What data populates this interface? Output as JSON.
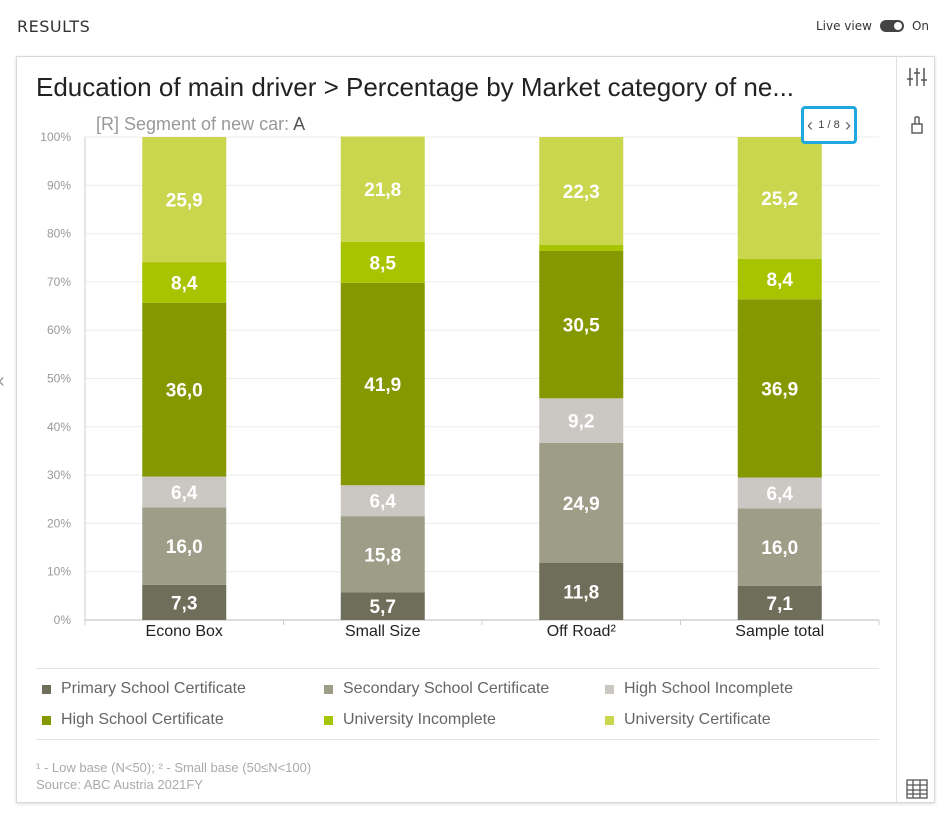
{
  "header": {
    "results_label": "RESULTS",
    "live_view_label": "Live view",
    "toggle_state": "On"
  },
  "pager": {
    "text": "1 / 8"
  },
  "subtitle": {
    "prefix": "[R] Segment of new car: ",
    "value": "A"
  },
  "footnotes": {
    "line1": "¹ - Low base (N<50);   ² - Small base (50≤N<100)",
    "line2": "Source: ABC Austria 2021FY"
  },
  "icons": [
    "sliders-icon",
    "brush-icon",
    "table-icon",
    "chevron-left-icon"
  ],
  "chart_data": {
    "type": "bar",
    "stacked": true,
    "title": "Education of main driver > Percentage by Market category of ne...",
    "categories": [
      "Econo Box",
      "Small Size",
      "Off Road²",
      "Sample total"
    ],
    "ylim": [
      0,
      100
    ],
    "yticks": [
      "0%",
      "10%",
      "20%",
      "30%",
      "40%",
      "50%",
      "60%",
      "70%",
      "80%",
      "90%",
      "100%"
    ],
    "grid": true,
    "legend_position": "bottom",
    "series": [
      {
        "name": "Primary School Certificate",
        "color": "#6e6e5a",
        "values": [
          7.3,
          5.7,
          11.8,
          7.1
        ],
        "labels": [
          "7,3",
          "5,7",
          "11,8",
          "7,1"
        ]
      },
      {
        "name": "Secondary School Certificate",
        "color": "#9d9d88",
        "values": [
          16.0,
          15.8,
          24.9,
          16.0
        ],
        "labels": [
          "16,0",
          "15,8",
          "24,9",
          "16,0"
        ]
      },
      {
        "name": "High School Incomplete",
        "color": "#cbc7c2",
        "values": [
          6.4,
          6.4,
          9.2,
          6.4
        ],
        "labels": [
          "6,4",
          "6,4",
          "9,2",
          "6,4"
        ]
      },
      {
        "name": "High School Certificate",
        "color": "#869800",
        "values": [
          36.0,
          41.9,
          30.5,
          36.9
        ],
        "labels": [
          "36,0",
          "41,9",
          "30,5",
          "36,9"
        ]
      },
      {
        "name": "University Incomplete",
        "color": "#a8c300",
        "values": [
          8.4,
          8.5,
          1.3,
          8.4
        ],
        "labels": [
          "8,4",
          "8,5",
          "",
          "8,4"
        ]
      },
      {
        "name": "University Certificate",
        "color": "#c9d64e",
        "values": [
          25.9,
          21.8,
          22.3,
          25.2
        ],
        "labels": [
          "25,9",
          "21,8",
          "22,3",
          "25,2"
        ]
      }
    ]
  }
}
